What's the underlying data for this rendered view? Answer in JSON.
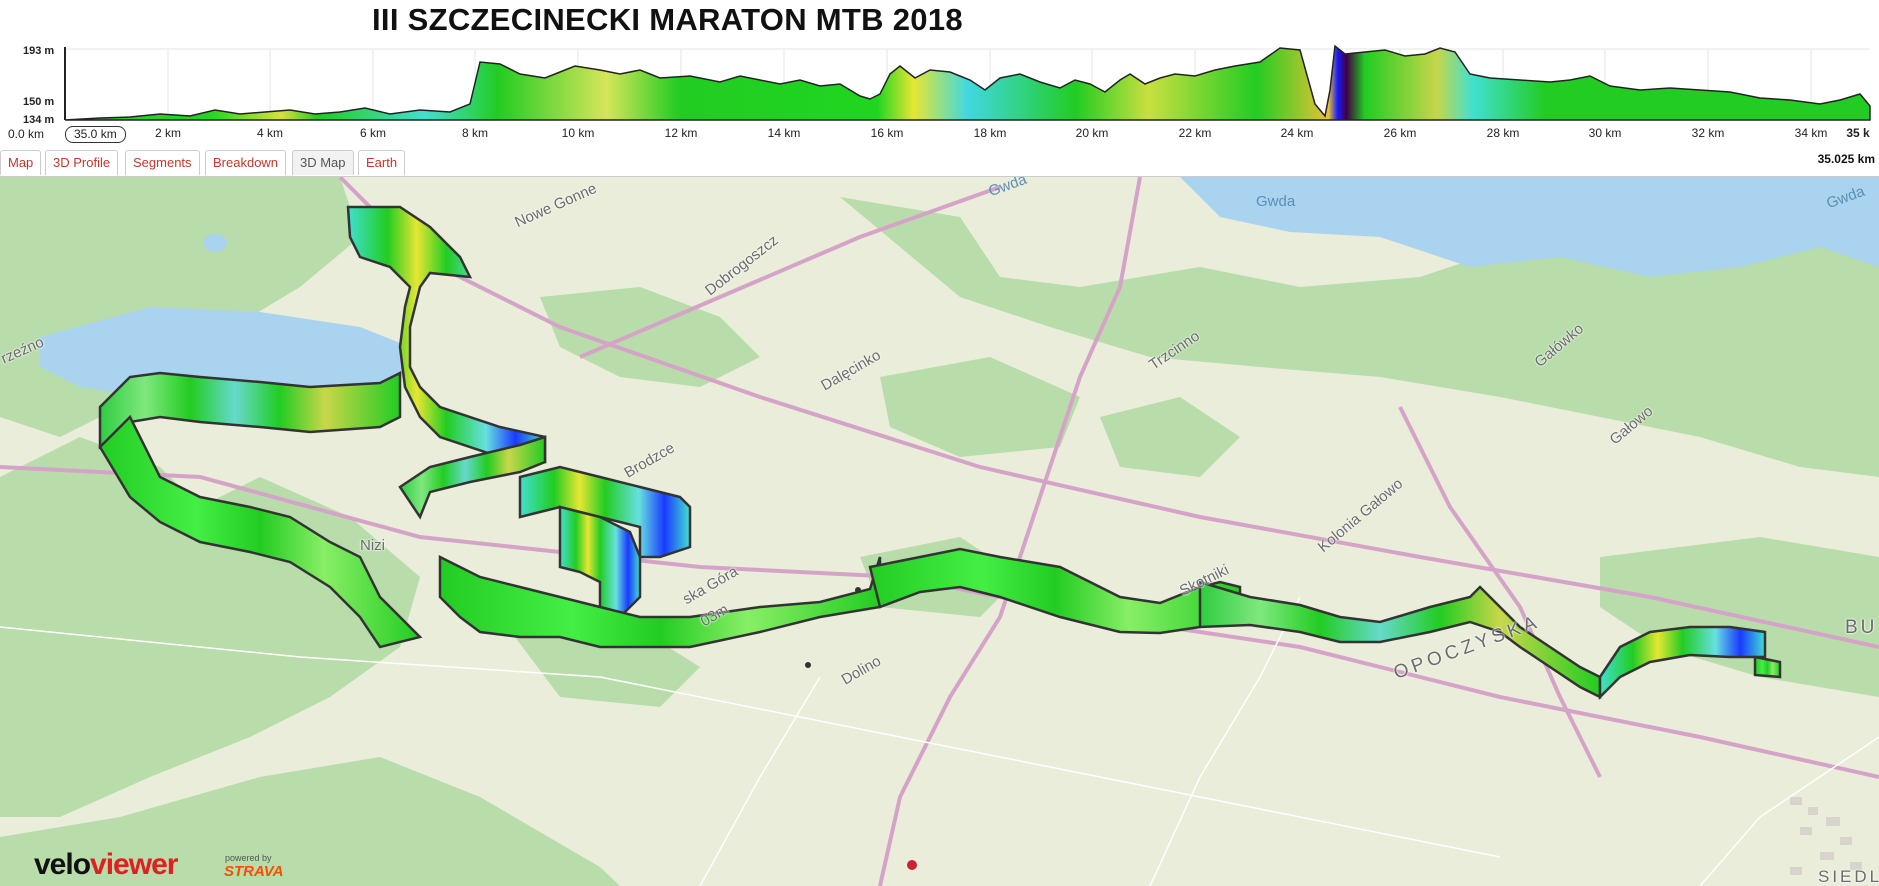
{
  "title": "III SZCZECINECKI MARATON MTB 2018",
  "profile": {
    "y_labels": [
      "193 m",
      "150 m",
      "134 m"
    ],
    "x_ticks": [
      "2 km",
      "4 km",
      "6 km",
      "8 km",
      "10 km",
      "12 km",
      "14 km",
      "16 km",
      "18 km",
      "20 km",
      "22 km",
      "24 km",
      "26 km",
      "28 km",
      "30 km",
      "32 km",
      "34 km"
    ],
    "x_end_label": "35 k",
    "range_start": "0.0 km",
    "range_end": "35.0 km",
    "total_distance": "35.025 km"
  },
  "tabs": [
    "Map",
    "3D Profile",
    "Segments",
    "Breakdown",
    "3D Map",
    "Earth"
  ],
  "active_tab": "3D Map",
  "map": {
    "places": [
      "Nowe Gonne",
      "Dobrogoszcz",
      "Dalęcinko",
      "Trzcinno",
      "Gałówko",
      "Gałowo",
      "Brodzce",
      "Kolonia Gałowo",
      "Skotniki",
      "OPOCZYSKA",
      "rzeźno",
      "Nizi",
      "ska Góra",
      "03m",
      "Dolino",
      "BU",
      "SIEDLE"
    ],
    "water": [
      "Gwda",
      "Gwda",
      "Gwda"
    ]
  },
  "branding": {
    "logo_part1": "velo",
    "logo_part2": "viewer",
    "powered_by": "powered by",
    "strava": "STRAVA"
  },
  "colors": {
    "route_high": "#1a1aff",
    "route_mid": "#e6e633",
    "route_low": "#22cc22",
    "water": "#aad3f0",
    "land": "#eaeedd",
    "forest": "#b5dba7",
    "road": "#d6a3c8"
  }
}
